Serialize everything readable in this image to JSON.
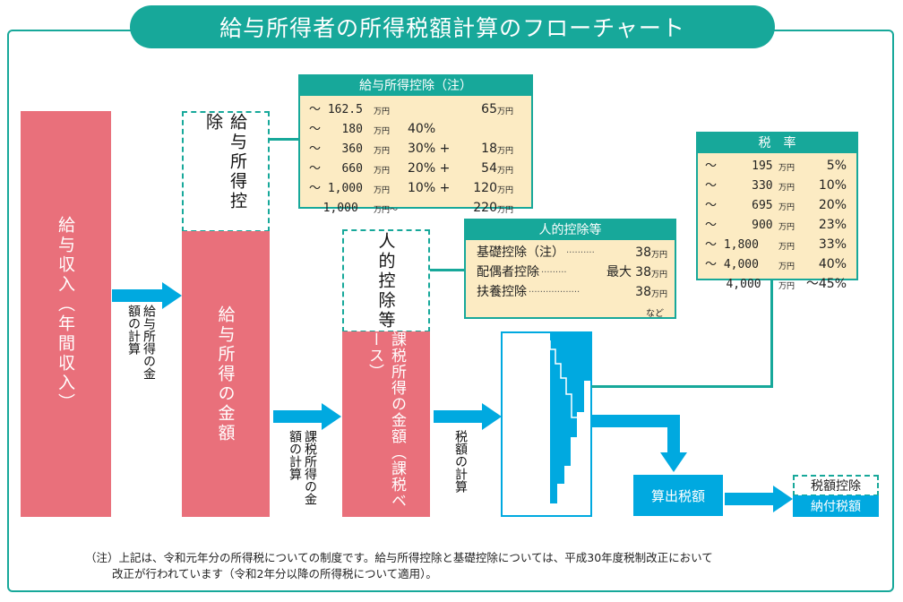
{
  "title": "給与所得者の所得税額計算のフローチャート",
  "blocks": {
    "gross_income": "給与収入（年間収入）",
    "employment_income": "給与所得の金額",
    "employment_deduction_label": "給与所得控除",
    "taxable_income": "課税所得の金額（課税ベース）",
    "personal_deduction_label": "人的控除等",
    "computed_tax": "算出税額",
    "tax_credit": "税額控除",
    "tax_payable": "納付税額"
  },
  "arrows": {
    "step1": "給与所得の金額の計算",
    "step2": "課税所得の金額の計算",
    "step3": "税額の計算"
  },
  "employment_deduction_table": {
    "header": "給与所得控除（注）",
    "rows": [
      {
        "range": "～ 162.5",
        "range_unit": "万円",
        "rate": "",
        "amount": "65",
        "amount_unit": "万円"
      },
      {
        "range": "～   180",
        "range_unit": "万円",
        "rate": "40%",
        "amount": "",
        "amount_unit": ""
      },
      {
        "range": "～   360",
        "range_unit": "万円",
        "rate": "30% +",
        "amount": "18",
        "amount_unit": "万円"
      },
      {
        "range": "～   660",
        "range_unit": "万円",
        "rate": "20% +",
        "amount": "54",
        "amount_unit": "万円"
      },
      {
        "range": "～ 1,000",
        "range_unit": "万円",
        "rate": "10% +",
        "amount": "120",
        "amount_unit": "万円"
      },
      {
        "range": "  1,000",
        "range_unit": "万円～",
        "rate": "",
        "amount": "220",
        "amount_unit": "万円"
      }
    ]
  },
  "personal_deduction_table": {
    "header": "人的控除等",
    "rows": [
      {
        "name": "基礎控除（注）",
        "dots": "··········",
        "prefix": "",
        "amount": "38",
        "unit": "万円"
      },
      {
        "name": "配偶者控除",
        "dots": "·········",
        "prefix": "最大",
        "amount": "38",
        "unit": "万円"
      },
      {
        "name": "扶養控除",
        "dots": "··················",
        "prefix": "",
        "amount": "38",
        "unit": "万円"
      }
    ],
    "footer": "など"
  },
  "tax_rate_table": {
    "header": "税　率",
    "rows": [
      {
        "range": "～     195",
        "unit": "万円",
        "rate": "5%"
      },
      {
        "range": "～     330",
        "unit": "万円",
        "rate": "10%"
      },
      {
        "range": "～     695",
        "unit": "万円",
        "rate": "20%"
      },
      {
        "range": "～     900",
        "unit": "万円",
        "rate": "23%"
      },
      {
        "range": "～ 1,800",
        "unit": "万円",
        "rate": "33%"
      },
      {
        "range": "～ 4,000",
        "unit": "万円",
        "rate": "40%"
      },
      {
        "range": "   4,000",
        "unit": "万円",
        "rate": "～45%"
      }
    ]
  },
  "note": {
    "line1": "（注）上記は、令和元年分の所得税についての制度です。給与所得控除と基礎控除については、平成30年度税制改正において",
    "line2": "改正が行われています（令和2年分以降の所得税について適用）。"
  },
  "colors": {
    "teal": "#17a89a",
    "pink": "#e9707b",
    "cyan": "#00a9e0",
    "cream": "#fcebc3"
  }
}
